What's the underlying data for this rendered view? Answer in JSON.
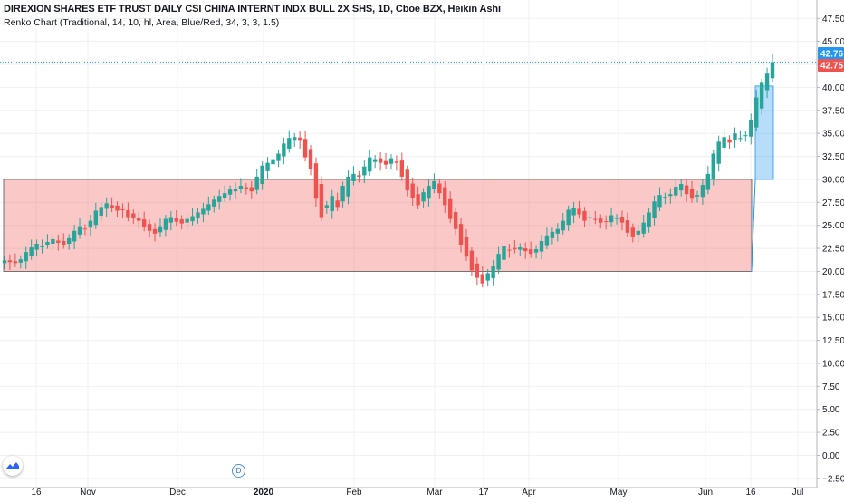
{
  "legend": {
    "title": "DIREXION SHARES ETF TRUST DAILY CSI CHINA INTERNT INDX BULL 2X SHS, 1D, Cboe BZX, Heikin Ashi",
    "indicator": "Renko Chart (Traditional, 14, 10, hl, Area, Blue/Red, 34, 3, 3, 1.5)"
  },
  "price_badges": {
    "last": "42.76",
    "renko": "42.75"
  },
  "event_marker": "D",
  "chart_data": {
    "type": "candlestick",
    "title": "DIREXION SHARES ETF TRUST DAILY CSI CHINA INTERNT INDX BULL 2X SHS, 1D, Cboe BZX, Heikin Ashi",
    "y_ticks": [
      "47.50",
      "45.00",
      "42.50",
      "40.00",
      "37.50",
      "35.00",
      "32.50",
      "30.00",
      "27.50",
      "25.00",
      "22.50",
      "20.00",
      "17.50",
      "15.00",
      "12.50",
      "10.00",
      "7.50",
      "5.00",
      "2.50",
      "0.00",
      "−2.50"
    ],
    "ylim": [
      -3.5,
      49.5
    ],
    "x_ticks": [
      "16",
      "Nov",
      "Dec",
      "2020",
      "Feb",
      "Mar",
      "17",
      "Apr",
      "May",
      "Jun",
      "16",
      "Jul"
    ],
    "colors": {
      "up": "#26a69a",
      "down": "#ef5350",
      "renko_up": "#2196f3",
      "renko_down": "#ef5350"
    },
    "candles_close": [
      21.2,
      21.0,
      20.9,
      21.3,
      22.1,
      22.6,
      23.0,
      22.8,
      23.2,
      23.5,
      23.1,
      22.9,
      23.6,
      24.4,
      24.9,
      24.6,
      25.5,
      26.6,
      27.0,
      27.4,
      26.9,
      26.6,
      26.7,
      25.9,
      25.8,
      25.5,
      24.8,
      24.4,
      24.1,
      24.9,
      25.7,
      25.9,
      25.4,
      25.2,
      25.7,
      26.0,
      26.4,
      26.8,
      27.3,
      27.8,
      28.2,
      28.5,
      28.9,
      29.0,
      29.3,
      29.0,
      28.7,
      30.3,
      31.5,
      31.8,
      32.2,
      32.8,
      33.9,
      34.5,
      34.6,
      34.2,
      32.4,
      31.1,
      27.9,
      25.9,
      27.2,
      28.2,
      27.0,
      29.3,
      30.3,
      30.6,
      30.3,
      31.4,
      32.4,
      32.2,
      31.8,
      31.6,
      32.3,
      31.8,
      30.3,
      28.8,
      28.0,
      27.2,
      28.6,
      29.3,
      29.8,
      28.5,
      27.2,
      25.7,
      24.6,
      22.9,
      21.6,
      20.1,
      19.3,
      18.7,
      19.8,
      20.6,
      21.9,
      22.8,
      22.3,
      22.4,
      22.6,
      22.2,
      21.9,
      22.4,
      23.3,
      23.9,
      24.3,
      24.6,
      25.5,
      26.7,
      26.9,
      26.2,
      25.5,
      25.9,
      25.6,
      25.3,
      25.4,
      26.1,
      25.8,
      25.3,
      24.2,
      23.8,
      24.4,
      25.3,
      26.4,
      27.6,
      28.3,
      28.1,
      28.4,
      29.2,
      29.5,
      28.4,
      27.9,
      28.3,
      29.4,
      30.6,
      32.8,
      34.1,
      34.6,
      34.0,
      35.0,
      34.5,
      34.8,
      36.5,
      38.9,
      40.5,
      41.5,
      42.76
    ],
    "renko_box": {
      "bottom": 20.0,
      "top": 30.0,
      "level": 42.75
    }
  }
}
